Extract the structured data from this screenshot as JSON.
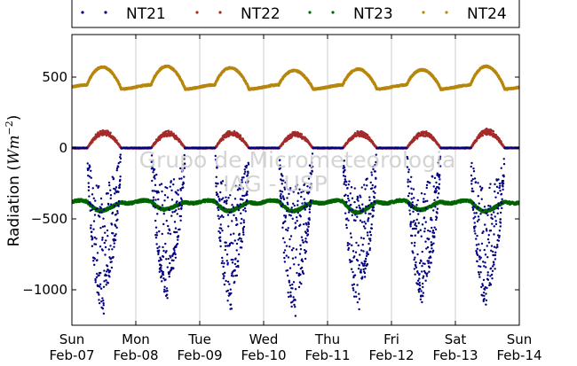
{
  "chart_data": {
    "type": "scatter",
    "ylabel": "Radiation ($Wm^{-2}$)",
    "ylabel_parts": {
      "prefix": "Radiation (",
      "var": "Wm",
      "exp": "−2",
      "suffix": ")"
    },
    "xlim": [
      0,
      7
    ],
    "ylim": [
      -1250,
      800
    ],
    "yticks": [
      500,
      0,
      -500,
      -1000
    ],
    "ytick_labels": [
      "500",
      "0",
      "−500",
      "−1000"
    ],
    "xtick_labels": [
      {
        "day": "Sun",
        "date": "Feb-07"
      },
      {
        "day": "Mon",
        "date": "Feb-08"
      },
      {
        "day": "Tue",
        "date": "Feb-09"
      },
      {
        "day": "Wed",
        "date": "Feb-10"
      },
      {
        "day": "Thu",
        "date": "Feb-11"
      },
      {
        "day": "Fri",
        "date": "Feb-12"
      },
      {
        "day": "Sat",
        "date": "Feb-13"
      },
      {
        "day": "Sun",
        "date": "Feb-14"
      }
    ],
    "grid": "vertical",
    "legend_position": "top",
    "watermark": [
      "Grupo de Micrometeorologia",
      "IAG - USP"
    ],
    "series": [
      {
        "name": "NT21",
        "color": "#000080",
        "baseline": 0,
        "daily_min": [
          -1170,
          -1080,
          -1150,
          -1220,
          -1150,
          -1120,
          -1170
        ]
      },
      {
        "name": "NT22",
        "color": "#a52a2a",
        "baseline": 0,
        "daily_max": [
          130,
          120,
          125,
          115,
          120,
          120,
          135
        ]
      },
      {
        "name": "NT23",
        "color": "#006400",
        "baseline": -380,
        "daily_min": [
          -440,
          -430,
          -440,
          -440,
          -450,
          -430,
          -440
        ]
      },
      {
        "name": "NT24",
        "color": "#b8860b",
        "baseline": 430,
        "daily_max": [
          570,
          575,
          565,
          545,
          555,
          550,
          575
        ]
      }
    ]
  }
}
